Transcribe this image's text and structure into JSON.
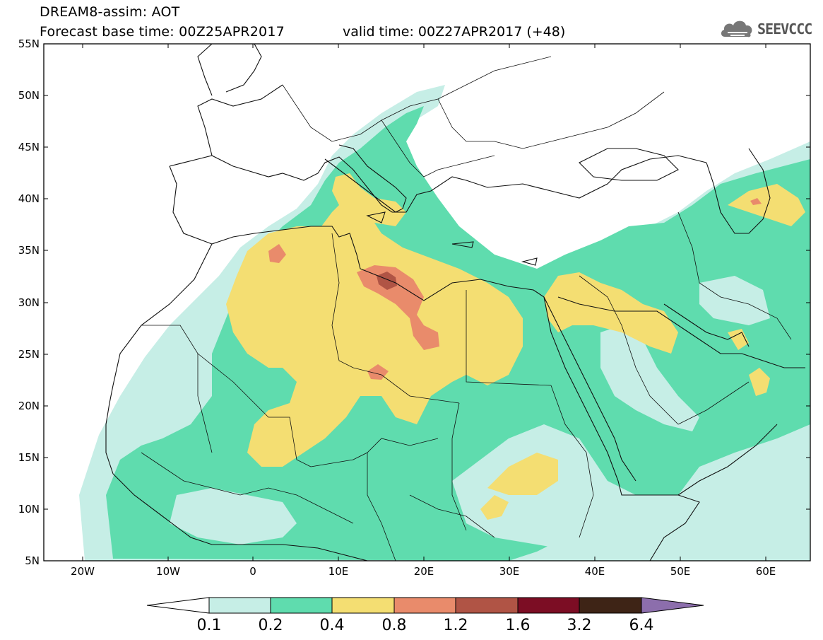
{
  "header": {
    "title_line1": "DREAM8-assim: AOT",
    "title_line2": "Forecast base time: 00Z25APR2017",
    "valid_time": "valid time: 00Z27APR2017 (+48)",
    "logo_text": "SEEVCCC",
    "logo_icon": "cloud-icon"
  },
  "map": {
    "lat_labels": [
      "55N",
      "50N",
      "45N",
      "40N",
      "35N",
      "30N",
      "25N",
      "20N",
      "15N",
      "10N",
      "5N"
    ],
    "lon_labels": [
      "20W",
      "10W",
      "0",
      "10E",
      "20E",
      "30E",
      "40E",
      "50E",
      "60E"
    ]
  },
  "colorbar": {
    "levels": [
      "0.1",
      "0.2",
      "0.4",
      "0.8",
      "1.2",
      "1.6",
      "3.2",
      "6.4"
    ],
    "colors": [
      "#c6eee6",
      "#5fdcae",
      "#f4de72",
      "#e98b6b",
      "#b05445",
      "#7c0d24",
      "#3e2416",
      "#8c6eac"
    ],
    "underflow_color": "#ffffff"
  },
  "colors": {
    "c1": "#c6eee6",
    "c2": "#5fdcae",
    "c3": "#f4de72",
    "c4": "#e98b6b",
    "c5": "#b05445"
  }
}
